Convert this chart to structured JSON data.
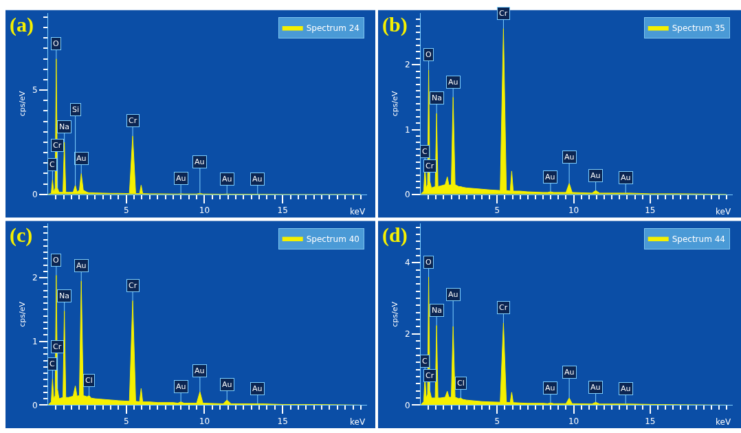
{
  "chart_data": [
    {
      "type": "area",
      "title": "(a)",
      "xlabel": "keV",
      "ylabel": "cps/eV",
      "legend": "top right",
      "x": [
        0,
        0.2,
        0.28,
        0.36,
        0.45,
        0.52,
        0.6,
        0.7,
        0.95,
        1.04,
        1.13,
        1.3,
        1.6,
        1.74,
        1.85,
        2.0,
        2.12,
        2.25,
        2.5,
        2.62,
        2.75,
        3.0,
        3.5,
        4.0,
        4.5,
        5.2,
        5.41,
        5.6,
        5.85,
        5.95,
        6.05,
        6.5,
        7.0,
        8.0,
        8.3,
        8.49,
        8.7,
        9.5,
        9.71,
        9.9,
        11.2,
        11.44,
        11.7,
        13.2,
        13.4,
        13.6,
        15,
        17,
        20
      ],
      "series": [
        {
          "name": "Spectrum 24",
          "color": "#f5f000",
          "values": [
            0,
            0.05,
            0.7,
            0.1,
            0.3,
            6.5,
            0.3,
            0.1,
            0.1,
            2.5,
            0.1,
            0.1,
            0.1,
            0.44,
            0.12,
            0.2,
            1.0,
            0.2,
            0.1,
            0.08,
            0.08,
            0.07,
            0.06,
            0.05,
            0.05,
            0.04,
            2.8,
            0.04,
            0.04,
            0.44,
            0.04,
            0.03,
            0.03,
            0.02,
            0.02,
            0.03,
            0.02,
            0.02,
            0.05,
            0.02,
            0.01,
            0.02,
            0.01,
            0.01,
            0.01,
            0.01,
            0,
            0,
            0
          ]
        }
      ],
      "xlim": [
        0,
        20.4
      ],
      "ylim": [
        0,
        8.7
      ],
      "xticks": [
        {
          "value": 0.5,
          "label": null
        },
        {
          "value": 1,
          "label": null
        },
        {
          "value": 1.5,
          "label": null
        },
        {
          "value": 2,
          "label": null
        },
        {
          "value": 2.5,
          "label": null
        },
        {
          "value": 3,
          "label": null
        },
        {
          "value": 3.5,
          "label": null
        },
        {
          "value": 4,
          "label": null
        },
        {
          "value": 4.5,
          "label": null
        },
        5,
        {
          "value": 5.5,
          "label": null
        },
        {
          "value": 6,
          "label": null
        },
        {
          "value": 6.5,
          "label": null
        },
        {
          "value": 7,
          "label": null
        },
        {
          "value": 7.5,
          "label": null
        },
        {
          "value": 8,
          "label": null
        },
        {
          "value": 8.5,
          "label": null
        },
        {
          "value": 9,
          "label": null
        },
        {
          "value": 9.5,
          "label": null
        },
        10,
        {
          "value": 10.5,
          "label": null
        },
        {
          "value": 11,
          "label": null
        },
        {
          "value": 11.5,
          "label": null
        },
        {
          "value": 12,
          "label": null
        },
        {
          "value": 12.5,
          "label": null
        },
        {
          "value": 13,
          "label": null
        },
        {
          "value": 13.5,
          "label": null
        },
        {
          "value": 14,
          "label": null
        },
        {
          "value": 14.5,
          "label": null
        },
        15,
        {
          "value": 15.5,
          "label": null
        },
        {
          "value": 16,
          "label": null
        },
        {
          "value": 16.5,
          "label": null
        },
        {
          "value": 17,
          "label": null
        },
        {
          "value": 17.5,
          "label": null
        },
        {
          "value": 18,
          "label": null
        },
        {
          "value": 18.5,
          "label": null
        },
        {
          "value": 19,
          "label": null
        },
        {
          "value": 19.5,
          "label": null
        },
        {
          "value": 20,
          "label": null
        }
      ],
      "yticks": [
        0,
        {
          "value": 0.5,
          "label": null
        },
        {
          "value": 1,
          "label": null
        },
        {
          "value": 1.5,
          "label": null
        },
        {
          "value": 2,
          "label": null
        },
        {
          "value": 2.5,
          "label": null
        },
        {
          "value": 3,
          "label": null
        },
        {
          "value": 3.5,
          "label": null
        },
        {
          "value": 4,
          "label": null
        },
        {
          "value": 4.5,
          "label": null
        },
        5,
        {
          "value": 5.5,
          "label": null
        },
        {
          "value": 6,
          "label": null
        },
        {
          "value": 6.5,
          "label": null
        },
        {
          "value": 7,
          "label": null
        },
        {
          "value": 7.5,
          "label": null
        },
        {
          "value": 8,
          "label": null
        },
        {
          "value": 8.5,
          "label": null
        }
      ],
      "annotations": [
        {
          "text": "O",
          "x": 0.52,
          "y": 6.5
        },
        {
          "text": "Na",
          "x": 1.04,
          "y": 2.5
        },
        {
          "text": "C",
          "x": 0.28,
          "y": 0.7
        },
        {
          "text": "Cr",
          "x": 0.6,
          "y": 0.3
        },
        {
          "text": "Au",
          "x": 2.12,
          "y": 1.0
        },
        {
          "text": "Si",
          "x": 1.74,
          "y": 0.44
        },
        {
          "text": "Cr",
          "x": 5.41,
          "y": 2.8
        },
        {
          "text": "Au",
          "x": 8.49,
          "y": 0.03
        },
        {
          "text": "Au",
          "x": 9.71,
          "y": 0.05
        },
        {
          "text": "Au",
          "x": 11.44,
          "y": 0.02
        },
        {
          "text": "Au",
          "x": 13.4,
          "y": 0.01
        }
      ]
    },
    {
      "type": "area",
      "title": "(b)",
      "xlabel": "keV",
      "ylabel": "cps/eV",
      "legend": "top right",
      "x": [
        0,
        0.2,
        0.28,
        0.36,
        0.45,
        0.52,
        0.6,
        0.7,
        0.95,
        1.04,
        1.13,
        1.3,
        1.6,
        1.74,
        1.85,
        2.0,
        2.12,
        2.25,
        2.5,
        2.62,
        2.75,
        3.0,
        3.5,
        4.0,
        4.5,
        5.2,
        5.41,
        5.6,
        5.85,
        5.95,
        6.05,
        6.5,
        7.0,
        8.0,
        8.3,
        8.49,
        8.7,
        9.5,
        9.71,
        9.9,
        11.2,
        11.44,
        11.7,
        13.2,
        13.4,
        13.6,
        15,
        17,
        20
      ],
      "series": [
        {
          "name": "Spectrum 35",
          "color": "#f5f000",
          "values": [
            0,
            0.05,
            0.43,
            0.1,
            0.15,
            1.92,
            0.2,
            0.1,
            0.12,
            1.25,
            0.12,
            0.13,
            0.15,
            0.27,
            0.14,
            0.15,
            1.5,
            0.15,
            0.12,
            0.12,
            0.11,
            0.1,
            0.09,
            0.08,
            0.07,
            0.06,
            2.56,
            0.06,
            0.05,
            0.36,
            0.05,
            0.05,
            0.04,
            0.03,
            0.03,
            0.04,
            0.03,
            0.03,
            0.17,
            0.03,
            0.02,
            0.06,
            0.02,
            0.02,
            0.02,
            0.02,
            0.01,
            0.01,
            0
          ]
        }
      ],
      "xlim": [
        0,
        20.4
      ],
      "ylim": [
        0,
        2.8
      ],
      "xticks": [
        {
          "value": 0.5,
          "label": null
        },
        {
          "value": 1,
          "label": null
        },
        {
          "value": 1.5,
          "label": null
        },
        {
          "value": 2,
          "label": null
        },
        {
          "value": 2.5,
          "label": null
        },
        {
          "value": 3,
          "label": null
        },
        {
          "value": 3.5,
          "label": null
        },
        {
          "value": 4,
          "label": null
        },
        {
          "value": 4.5,
          "label": null
        },
        5,
        {
          "value": 5.5,
          "label": null
        },
        {
          "value": 6,
          "label": null
        },
        {
          "value": 6.5,
          "label": null
        },
        {
          "value": 7,
          "label": null
        },
        {
          "value": 7.5,
          "label": null
        },
        {
          "value": 8,
          "label": null
        },
        {
          "value": 8.5,
          "label": null
        },
        {
          "value": 9,
          "label": null
        },
        {
          "value": 9.5,
          "label": null
        },
        10,
        {
          "value": 10.5,
          "label": null
        },
        {
          "value": 11,
          "label": null
        },
        {
          "value": 11.5,
          "label": null
        },
        {
          "value": 12,
          "label": null
        },
        {
          "value": 12.5,
          "label": null
        },
        {
          "value": 13,
          "label": null
        },
        {
          "value": 13.5,
          "label": null
        },
        {
          "value": 14,
          "label": null
        },
        {
          "value": 14.5,
          "label": null
        },
        15,
        {
          "value": 15.5,
          "label": null
        },
        {
          "value": 16,
          "label": null
        },
        {
          "value": 16.5,
          "label": null
        },
        {
          "value": 17,
          "label": null
        },
        {
          "value": 17.5,
          "label": null
        },
        {
          "value": 18,
          "label": null
        },
        {
          "value": 18.5,
          "label": null
        },
        {
          "value": 19,
          "label": null
        },
        {
          "value": 19.5,
          "label": null
        },
        {
          "value": 20,
          "label": null
        }
      ],
      "yticks": [
        0,
        {
          "value": 0.1,
          "label": null
        },
        {
          "value": 0.2,
          "label": null
        },
        {
          "value": 0.3,
          "label": null
        },
        {
          "value": 0.4,
          "label": null
        },
        {
          "value": 0.5,
          "label": null
        },
        {
          "value": 0.6,
          "label": null
        },
        {
          "value": 0.7,
          "label": null
        },
        {
          "value": 0.8,
          "label": null
        },
        {
          "value": 0.9,
          "label": null
        },
        1,
        {
          "value": 1.1,
          "label": null
        },
        {
          "value": 1.2,
          "label": null
        },
        {
          "value": 1.3,
          "label": null
        },
        {
          "value": 1.4,
          "label": null
        },
        {
          "value": 1.5,
          "label": null
        },
        {
          "value": 1.6,
          "label": null
        },
        {
          "value": 1.7,
          "label": null
        },
        {
          "value": 1.8,
          "label": null
        },
        {
          "value": 1.9,
          "label": null
        },
        2,
        {
          "value": 2.1,
          "label": null
        },
        {
          "value": 2.2,
          "label": null
        },
        {
          "value": 2.3,
          "label": null
        },
        {
          "value": 2.4,
          "label": null
        },
        {
          "value": 2.5,
          "label": null
        },
        {
          "value": 2.6,
          "label": null
        },
        {
          "value": 2.7,
          "label": null
        }
      ],
      "annotations": [
        {
          "text": "Cr",
          "x": 5.41,
          "y": 2.56
        },
        {
          "text": "O",
          "x": 0.52,
          "y": 1.92
        },
        {
          "text": "Au",
          "x": 2.12,
          "y": 1.5
        },
        {
          "text": "Na",
          "x": 1.04,
          "y": 1.25
        },
        {
          "text": "C",
          "x": 0.28,
          "y": 0.43
        },
        {
          "text": "Cr",
          "x": 0.6,
          "y": 0.2
        },
        {
          "text": "Au",
          "x": 8.49,
          "y": 0.04
        },
        {
          "text": "Au",
          "x": 9.71,
          "y": 0.17
        },
        {
          "text": "Au",
          "x": 11.44,
          "y": 0.06
        },
        {
          "text": "Au",
          "x": 13.4,
          "y": 0.02
        }
      ]
    },
    {
      "type": "area",
      "title": "(c)",
      "xlabel": "keV",
      "ylabel": "cps/eV",
      "legend": "top right",
      "x": [
        0,
        0.2,
        0.28,
        0.36,
        0.45,
        0.52,
        0.6,
        0.7,
        0.95,
        1.04,
        1.13,
        1.3,
        1.6,
        1.74,
        1.85,
        2.0,
        2.12,
        2.25,
        2.5,
        2.62,
        2.75,
        3.0,
        3.5,
        4.0,
        4.5,
        5.2,
        5.41,
        5.6,
        5.85,
        5.95,
        6.05,
        6.5,
        7.0,
        8.0,
        8.3,
        8.49,
        8.7,
        9.5,
        9.71,
        9.9,
        11.2,
        11.44,
        11.7,
        13.2,
        13.4,
        13.6,
        15,
        17,
        20
      ],
      "series": [
        {
          "name": "Spectrum 40",
          "color": "#f5f000",
          "values": [
            0,
            0.05,
            0.41,
            0.1,
            0.15,
            2.04,
            0.25,
            0.1,
            0.12,
            1.48,
            0.12,
            0.12,
            0.14,
            0.3,
            0.14,
            0.15,
            1.95,
            0.15,
            0.13,
            0.15,
            0.11,
            0.1,
            0.09,
            0.08,
            0.07,
            0.06,
            1.64,
            0.06,
            0.05,
            0.26,
            0.05,
            0.05,
            0.04,
            0.04,
            0.03,
            0.05,
            0.03,
            0.03,
            0.21,
            0.03,
            0.02,
            0.08,
            0.02,
            0.02,
            0.02,
            0.02,
            0.01,
            0.01,
            0
          ]
        }
      ],
      "xlim": [
        0,
        20.4
      ],
      "ylim": [
        0,
        2.85
      ],
      "xticks": [
        {
          "value": 0.5,
          "label": null
        },
        {
          "value": 1,
          "label": null
        },
        {
          "value": 1.5,
          "label": null
        },
        {
          "value": 2,
          "label": null
        },
        {
          "value": 2.5,
          "label": null
        },
        {
          "value": 3,
          "label": null
        },
        {
          "value": 3.5,
          "label": null
        },
        {
          "value": 4,
          "label": null
        },
        {
          "value": 4.5,
          "label": null
        },
        5,
        {
          "value": 5.5,
          "label": null
        },
        {
          "value": 6,
          "label": null
        },
        {
          "value": 6.5,
          "label": null
        },
        {
          "value": 7,
          "label": null
        },
        {
          "value": 7.5,
          "label": null
        },
        {
          "value": 8,
          "label": null
        },
        {
          "value": 8.5,
          "label": null
        },
        {
          "value": 9,
          "label": null
        },
        {
          "value": 9.5,
          "label": null
        },
        10,
        {
          "value": 10.5,
          "label": null
        },
        {
          "value": 11,
          "label": null
        },
        {
          "value": 11.5,
          "label": null
        },
        {
          "value": 12,
          "label": null
        },
        {
          "value": 12.5,
          "label": null
        },
        {
          "value": 13,
          "label": null
        },
        {
          "value": 13.5,
          "label": null
        },
        {
          "value": 14,
          "label": null
        },
        {
          "value": 14.5,
          "label": null
        },
        15,
        {
          "value": 15.5,
          "label": null
        },
        {
          "value": 16,
          "label": null
        },
        {
          "value": 16.5,
          "label": null
        },
        {
          "value": 17,
          "label": null
        },
        {
          "value": 17.5,
          "label": null
        },
        {
          "value": 18,
          "label": null
        },
        {
          "value": 18.5,
          "label": null
        },
        {
          "value": 19,
          "label": null
        },
        {
          "value": 19.5,
          "label": null
        },
        {
          "value": 20,
          "label": null
        }
      ],
      "yticks": [
        0,
        {
          "value": 0.1,
          "label": null
        },
        {
          "value": 0.2,
          "label": null
        },
        {
          "value": 0.3,
          "label": null
        },
        {
          "value": 0.4,
          "label": null
        },
        {
          "value": 0.5,
          "label": null
        },
        {
          "value": 0.6,
          "label": null
        },
        {
          "value": 0.7,
          "label": null
        },
        {
          "value": 0.8,
          "label": null
        },
        {
          "value": 0.9,
          "label": null
        },
        1,
        {
          "value": 1.1,
          "label": null
        },
        {
          "value": 1.2,
          "label": null
        },
        {
          "value": 1.3,
          "label": null
        },
        {
          "value": 1.4,
          "label": null
        },
        {
          "value": 1.5,
          "label": null
        },
        {
          "value": 1.6,
          "label": null
        },
        {
          "value": 1.7,
          "label": null
        },
        {
          "value": 1.8,
          "label": null
        },
        {
          "value": 1.9,
          "label": null
        },
        2,
        {
          "value": 2.1,
          "label": null
        },
        {
          "value": 2.2,
          "label": null
        },
        {
          "value": 2.3,
          "label": null
        },
        {
          "value": 2.4,
          "label": null
        },
        {
          "value": 2.5,
          "label": null
        },
        {
          "value": 2.6,
          "label": null
        },
        {
          "value": 2.7,
          "label": null
        },
        {
          "value": 2.8,
          "label": null
        }
      ],
      "annotations": [
        {
          "text": "O",
          "x": 0.52,
          "y": 2.04
        },
        {
          "text": "Au",
          "x": 2.12,
          "y": 1.95
        },
        {
          "text": "Cr",
          "x": 5.41,
          "y": 1.64
        },
        {
          "text": "Na",
          "x": 1.04,
          "y": 1.48
        },
        {
          "text": "C",
          "x": 0.28,
          "y": 0.41
        },
        {
          "text": "Cr",
          "x": 0.6,
          "y": 0.25
        },
        {
          "text": "Cl",
          "x": 2.62,
          "y": 0.15
        },
        {
          "text": "Au",
          "x": 8.49,
          "y": 0.05
        },
        {
          "text": "Au",
          "x": 9.71,
          "y": 0.21
        },
        {
          "text": "Au",
          "x": 11.44,
          "y": 0.08
        },
        {
          "text": "Au",
          "x": 13.4,
          "y": 0.02
        }
      ]
    },
    {
      "type": "area",
      "title": "(d)",
      "xlabel": "keV",
      "ylabel": "cps/eV",
      "legend": "top right",
      "x": [
        0,
        0.2,
        0.28,
        0.36,
        0.45,
        0.52,
        0.6,
        0.7,
        0.95,
        1.04,
        1.13,
        1.3,
        1.6,
        1.74,
        1.85,
        2.0,
        2.12,
        2.25,
        2.5,
        2.62,
        2.75,
        3.0,
        3.5,
        4.0,
        4.5,
        5.2,
        5.41,
        5.6,
        5.85,
        5.95,
        6.05,
        6.5,
        7.0,
        8.0,
        8.3,
        8.49,
        8.7,
        9.5,
        9.71,
        9.9,
        11.2,
        11.44,
        11.7,
        13.2,
        13.4,
        13.6,
        15,
        17,
        20
      ],
      "series": [
        {
          "name": "Spectrum 44",
          "color": "#f5f000",
          "values": [
            0,
            0.1,
            0.81,
            0.2,
            0.3,
            3.6,
            0.4,
            0.2,
            0.2,
            2.24,
            0.2,
            0.2,
            0.22,
            0.39,
            0.22,
            0.22,
            2.21,
            0.22,
            0.18,
            0.2,
            0.16,
            0.14,
            0.12,
            0.1,
            0.09,
            0.08,
            2.31,
            0.08,
            0.07,
            0.36,
            0.07,
            0.06,
            0.05,
            0.05,
            0.04,
            0.06,
            0.04,
            0.04,
            0.2,
            0.04,
            0.03,
            0.08,
            0.03,
            0.03,
            0.03,
            0.03,
            0.02,
            0.01,
            0
          ]
        }
      ],
      "xlim": [
        0,
        20.4
      ],
      "ylim": [
        0,
        5.1
      ],
      "xticks": [
        {
          "value": 0.5,
          "label": null
        },
        {
          "value": 1,
          "label": null
        },
        {
          "value": 1.5,
          "label": null
        },
        {
          "value": 2,
          "label": null
        },
        {
          "value": 2.5,
          "label": null
        },
        {
          "value": 3,
          "label": null
        },
        {
          "value": 3.5,
          "label": null
        },
        {
          "value": 4,
          "label": null
        },
        {
          "value": 4.5,
          "label": null
        },
        5,
        {
          "value": 5.5,
          "label": null
        },
        {
          "value": 6,
          "label": null
        },
        {
          "value": 6.5,
          "label": null
        },
        {
          "value": 7,
          "label": null
        },
        {
          "value": 7.5,
          "label": null
        },
        {
          "value": 8,
          "label": null
        },
        {
          "value": 8.5,
          "label": null
        },
        {
          "value": 9,
          "label": null
        },
        {
          "value": 9.5,
          "label": null
        },
        10,
        {
          "value": 10.5,
          "label": null
        },
        {
          "value": 11,
          "label": null
        },
        {
          "value": 11.5,
          "label": null
        },
        {
          "value": 12,
          "label": null
        },
        {
          "value": 12.5,
          "label": null
        },
        {
          "value": 13,
          "label": null
        },
        {
          "value": 13.5,
          "label": null
        },
        {
          "value": 14,
          "label": null
        },
        {
          "value": 14.5,
          "label": null
        },
        15,
        {
          "value": 15.5,
          "label": null
        },
        {
          "value": 16,
          "label": null
        },
        {
          "value": 16.5,
          "label": null
        },
        {
          "value": 17,
          "label": null
        },
        {
          "value": 17.5,
          "label": null
        },
        {
          "value": 18,
          "label": null
        },
        {
          "value": 18.5,
          "label": null
        },
        {
          "value": 19,
          "label": null
        },
        {
          "value": 19.5,
          "label": null
        },
        {
          "value": 20,
          "label": null
        }
      ],
      "yticks": [
        0,
        {
          "value": 0.2,
          "label": null
        },
        {
          "value": 0.4,
          "label": null
        },
        {
          "value": 0.6,
          "label": null
        },
        {
          "value": 0.8,
          "label": null
        },
        {
          "value": 1,
          "label": null
        },
        {
          "value": 1.2,
          "label": null
        },
        {
          "value": 1.4,
          "label": null
        },
        {
          "value": 1.6,
          "label": null
        },
        {
          "value": 1.8,
          "label": null
        },
        2,
        {
          "value": 2.2,
          "label": null
        },
        {
          "value": 2.4,
          "label": null
        },
        {
          "value": 2.6,
          "label": null
        },
        {
          "value": 2.8,
          "label": null
        },
        {
          "value": 3,
          "label": null
        },
        {
          "value": 3.2,
          "label": null
        },
        {
          "value": 3.4,
          "label": null
        },
        {
          "value": 3.6,
          "label": null
        },
        {
          "value": 3.8,
          "label": null
        },
        4,
        {
          "value": 4.2,
          "label": null
        },
        {
          "value": 4.4,
          "label": null
        },
        {
          "value": 4.6,
          "label": null
        },
        {
          "value": 4.8,
          "label": null
        },
        {
          "value": 5,
          "label": null
        }
      ],
      "annotations": [
        {
          "text": "O",
          "x": 0.52,
          "y": 3.6
        },
        {
          "text": "Cr",
          "x": 5.41,
          "y": 2.31
        },
        {
          "text": "Na",
          "x": 1.04,
          "y": 2.24
        },
        {
          "text": "Au",
          "x": 2.12,
          "y": 2.21
        },
        {
          "text": "C",
          "x": 0.28,
          "y": 0.81
        },
        {
          "text": "Cr",
          "x": 0.6,
          "y": 0.4
        },
        {
          "text": "Cl",
          "x": 2.62,
          "y": 0.2
        },
        {
          "text": "Au",
          "x": 8.49,
          "y": 0.06
        },
        {
          "text": "Au",
          "x": 9.71,
          "y": 0.2
        },
        {
          "text": "Au",
          "x": 11.44,
          "y": 0.08
        },
        {
          "text": "Au",
          "x": 13.4,
          "y": 0.03
        }
      ]
    }
  ]
}
